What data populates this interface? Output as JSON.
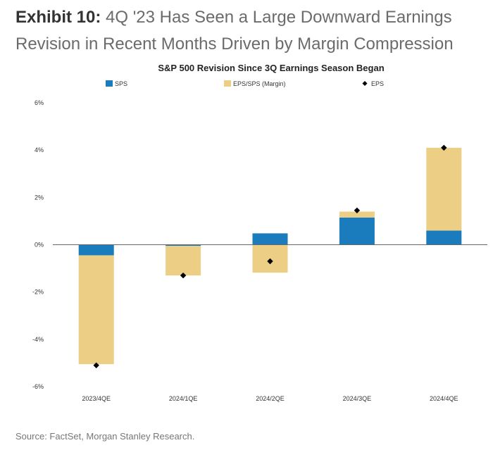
{
  "exhibit": {
    "label": "Exhibit 10:",
    "title": "4Q '23 Has Seen a Large Downward Earnings Revision in Recent Months Driven by Margin Compression"
  },
  "source": "Source: FactSet, Morgan Stanley Research.",
  "colors": {
    "sps": "#1a7bbd",
    "margin": "#ecce85",
    "eps": "#000000",
    "axis": "#666666"
  },
  "chart_data": {
    "type": "bar",
    "stacked": true,
    "title": "S&P 500 Revision Since 3Q Earnings Season Began",
    "xlabel": "",
    "ylabel": "",
    "ylim": [
      -6,
      6
    ],
    "yticks": [
      6,
      4,
      2,
      0,
      -2,
      -4,
      -6
    ],
    "ytick_labels": [
      "6%",
      "4%",
      "2%",
      "0%",
      "-2%",
      "-4%",
      "-6%"
    ],
    "grid": false,
    "legend_position": "top",
    "categories": [
      "2023/4QE",
      "2024/1QE",
      "2024/2QE",
      "2024/3QE",
      "2024/4QE"
    ],
    "series": [
      {
        "name": "SPS",
        "kind": "bar",
        "values": [
          -0.45,
          -0.05,
          0.48,
          1.15,
          0.6
        ]
      },
      {
        "name": "EPS/SPS (Margin)",
        "kind": "bar",
        "values": [
          -4.6,
          -1.25,
          -1.18,
          0.25,
          3.5
        ]
      },
      {
        "name": "EPS",
        "kind": "marker",
        "values": [
          -5.1,
          -1.3,
          -0.7,
          1.45,
          4.1
        ]
      }
    ]
  }
}
